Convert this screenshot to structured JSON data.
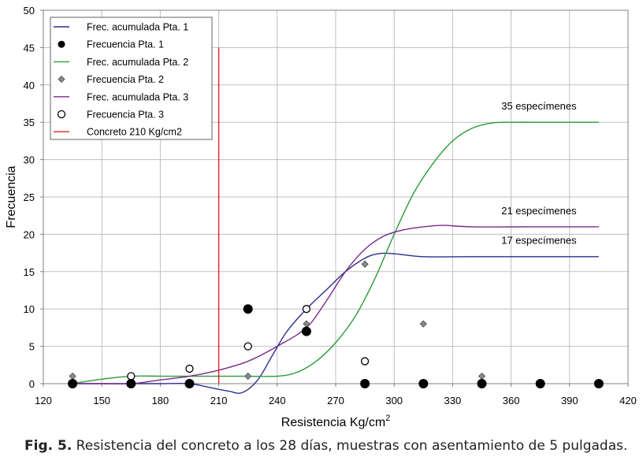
{
  "chart_data": {
    "type": "line",
    "xlabel_main": "Resistencia Kg/cm",
    "xlabel_sup": "2",
    "ylabel": "Frecuencia",
    "xlim": [
      120,
      420
    ],
    "ylim": [
      0,
      50
    ],
    "xticks": [
      120,
      150,
      180,
      210,
      240,
      270,
      300,
      330,
      360,
      390,
      420
    ],
    "yticks": [
      0,
      5,
      10,
      15,
      20,
      25,
      30,
      35,
      40,
      45,
      50
    ],
    "grid": true,
    "legend_position": "top-left",
    "colors": {
      "pta1": "#2e2e8c",
      "pta2": "#2a9a3a",
      "pta3": "#7a2a8a",
      "concreto": "#e02020",
      "grid": "#bfbfbf",
      "marker2": "#8a8a8a"
    },
    "series": [
      {
        "key": "cum1",
        "name": "Frec. acumulada Pta. 1",
        "kind": "line",
        "color": "#2e2e8c",
        "x": [
          135,
          150,
          165,
          180,
          195,
          205,
          215,
          222,
          230,
          238,
          245,
          255,
          265,
          275,
          285,
          292,
          300,
          315,
          340,
          370,
          405
        ],
        "y": [
          0,
          0,
          0,
          0,
          0,
          -0.5,
          -1,
          -1.2,
          0.5,
          4,
          7,
          10,
          12.5,
          15,
          16.8,
          17.4,
          17.4,
          17,
          17,
          17,
          17
        ]
      },
      {
        "key": "freq1",
        "name": "Frecuencia Pta. 1",
        "kind": "marker",
        "marker": "filled-circle",
        "x": [
          135,
          165,
          195,
          225,
          255,
          285,
          315,
          345,
          375,
          405
        ],
        "y": [
          0,
          0,
          0,
          10,
          7,
          0,
          0,
          0,
          0,
          0
        ]
      },
      {
        "key": "cum2",
        "name": "Frec. acumulada Pta. 2",
        "kind": "line",
        "color": "#2a9a3a",
        "x": [
          135,
          150,
          165,
          180,
          195,
          210,
          225,
          240,
          250,
          260,
          270,
          280,
          290,
          300,
          310,
          320,
          330,
          340,
          350,
          360,
          380,
          405
        ],
        "y": [
          0,
          0.6,
          1,
          1,
          1,
          1,
          1,
          1,
          1.5,
          3,
          5.5,
          9,
          14,
          20,
          25.5,
          29.5,
          32.5,
          34.2,
          34.9,
          35,
          35,
          35
        ]
      },
      {
        "key": "freq2",
        "name": "Frecuencia Pta. 2",
        "kind": "marker",
        "marker": "gray-diamond",
        "x": [
          135,
          165,
          195,
          225,
          255,
          285,
          315,
          345
        ],
        "y": [
          1,
          0,
          0,
          1,
          8,
          16,
          8,
          1
        ]
      },
      {
        "key": "cum3",
        "name": "Frec. acumulada Pta. 3",
        "kind": "line",
        "color": "#7a2a8a",
        "x": [
          135,
          150,
          165,
          180,
          195,
          210,
          225,
          240,
          255,
          265,
          275,
          285,
          295,
          305,
          315,
          325,
          340,
          370,
          405
        ],
        "y": [
          0,
          0,
          0,
          0.5,
          1,
          1.8,
          3,
          5,
          7.5,
          11,
          15,
          18,
          19.8,
          20.6,
          21,
          21.2,
          21,
          21,
          21
        ]
      },
      {
        "key": "freq3",
        "name": "Frecuencia Pta. 3",
        "kind": "marker",
        "marker": "open-circle",
        "x": [
          135,
          165,
          195,
          225,
          255,
          285,
          315,
          345,
          375,
          405
        ],
        "y": [
          0,
          1,
          2,
          5,
          10,
          3,
          0,
          0,
          0,
          0
        ]
      },
      {
        "key": "concreto",
        "name": "Concreto 210 Kg/cm2",
        "kind": "vline",
        "color": "#e02020",
        "x": [
          210,
          210
        ],
        "y": [
          0,
          45
        ]
      }
    ],
    "annotations": [
      {
        "text": "35 especímenes",
        "x": 355,
        "y": 36.7
      },
      {
        "text": "21 especímenes",
        "x": 355,
        "y": 22.7
      },
      {
        "text": "17 especímenes",
        "x": 355,
        "y": 18.7
      }
    ]
  },
  "caption": {
    "label": "Fig. 5.",
    "text": " Resistencia del concreto a los 28 días, muestras con asentamiento de 5 pulgadas."
  }
}
